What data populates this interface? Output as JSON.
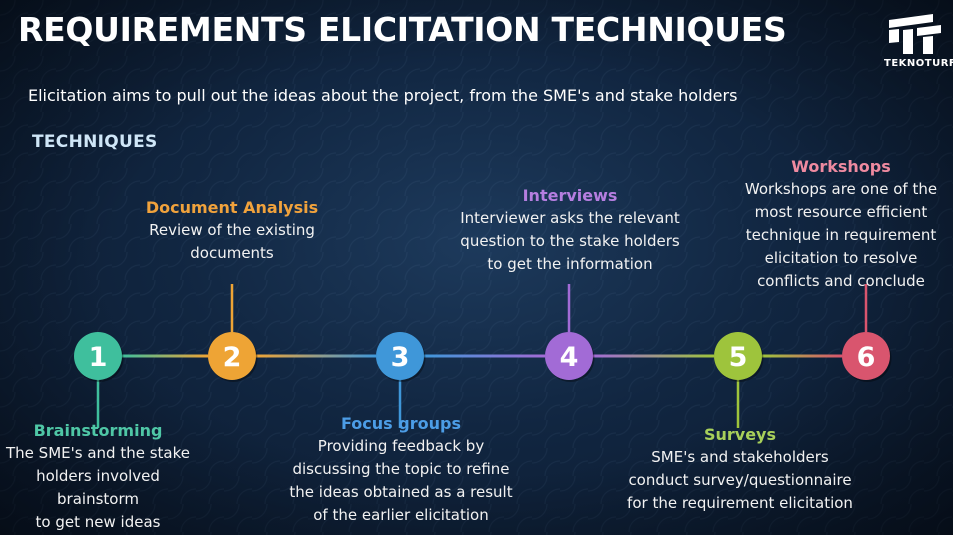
{
  "title": "REQUIREMENTS ELICITATION TECHNIQUES",
  "subtitle": "Elicitation aims to pull out the ideas about the project, from the SME's and stake holders",
  "section_label": "TECHNIQUES",
  "logo": {
    "text": "TEKNOTURF",
    "icon": "teknoturf-logo-icon"
  },
  "techniques": [
    {
      "number": "1",
      "name": "Brainstorming",
      "color": "#3fbf9d",
      "description_lines": [
        "The SME's and the stake",
        "holders involved brainstorm",
        "to get new ideas"
      ]
    },
    {
      "number": "2",
      "name": "Document Analysis",
      "color": "#eea435",
      "description_lines": [
        "Review of the existing",
        "documents"
      ]
    },
    {
      "number": "3",
      "name": "Focus groups",
      "color": "#3f97d9",
      "description_lines": [
        "Providing feedback by",
        "discussing the topic to refine",
        "the ideas obtained as a result",
        "of the earlier elicitation"
      ]
    },
    {
      "number": "4",
      "name": "Interviews",
      "color": "#a26bd6",
      "description_lines": [
        "Interviewer asks the relevant",
        "question to the stake holders",
        "to get the information"
      ]
    },
    {
      "number": "5",
      "name": "Surveys",
      "color": "#9ec43c",
      "description_lines": [
        "SME's and stakeholders",
        "conduct survey/questionnaire",
        "for the requirement elicitation"
      ]
    },
    {
      "number": "6",
      "name": "Workshops",
      "color": "#d9556e",
      "description_lines": [
        "Workshops are one of the",
        "most resource efficient",
        "technique in requirement",
        "elicitation to resolve",
        "conflicts and conclude"
      ]
    }
  ]
}
